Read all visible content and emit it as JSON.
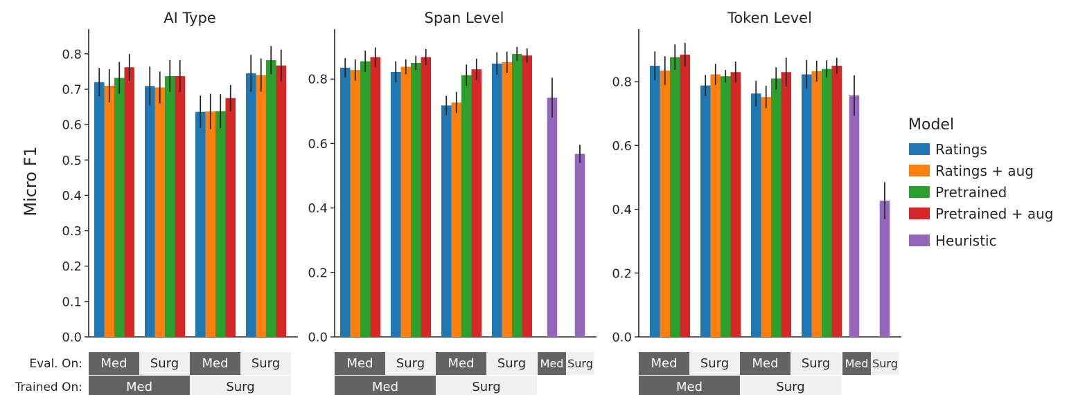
{
  "chart_data": {
    "type": "bar",
    "ylabel": "Micro F1",
    "legend": {
      "title": "Model",
      "placement": "right",
      "entries": [
        {
          "name": "Ratings",
          "color": "#1f77b4"
        },
        {
          "name": "Ratings + aug",
          "color": "#ff7f0e"
        },
        {
          "name": "Pretrained",
          "color": "#2ca02c"
        },
        {
          "name": "Pretrained + aug",
          "color": "#d62728"
        },
        {
          "name": "Heuristic",
          "color": "#9467bd"
        }
      ]
    },
    "row_labels": {
      "eval": "Eval. On:",
      "trained": "Trained On:"
    },
    "panels": [
      {
        "title": "AI Type",
        "ylim": [
          0,
          0.87
        ],
        "yticks": [
          0.0,
          0.1,
          0.2,
          0.3,
          0.4,
          0.5,
          0.6,
          0.7,
          0.8
        ],
        "tick_labels": [
          "0.0",
          "0.1",
          "0.2",
          "0.3",
          "0.4",
          "0.5",
          "0.6",
          "0.7",
          "0.8"
        ],
        "groups": [
          {
            "eval": "Med",
            "trained": "Med",
            "values": [
              0.72,
              0.71,
              0.732,
              0.762
            ],
            "err": [
              0.04,
              0.047,
              0.045,
              0.038
            ]
          },
          {
            "eval": "Surg",
            "trained": "Med",
            "values": [
              0.709,
              0.705,
              0.737,
              0.737
            ],
            "err": [
              0.055,
              0.045,
              0.045,
              0.045
            ]
          },
          {
            "eval": "Med",
            "trained": "Surg",
            "values": [
              0.636,
              0.637,
              0.638,
              0.675
            ],
            "err": [
              0.046,
              0.05,
              0.048,
              0.037
            ]
          },
          {
            "eval": "Surg",
            "trained": "Surg",
            "values": [
              0.745,
              0.74,
              0.782,
              0.767
            ],
            "err": [
              0.052,
              0.047,
              0.04,
              0.045
            ]
          }
        ],
        "trained_spans": [
          {
            "label": "Med",
            "groups": 2
          },
          {
            "label": "Surg",
            "groups": 2
          }
        ]
      },
      {
        "title": "Span Level",
        "ylim": [
          0,
          0.955
        ],
        "yticks": [
          0.0,
          0.2,
          0.4,
          0.6,
          0.8
        ],
        "tick_labels": [
          "0.0",
          "0.2",
          "0.4",
          "0.6",
          "0.8"
        ],
        "groups": [
          {
            "eval": "Med",
            "trained": "Med",
            "values": [
              0.835,
              0.828,
              0.855,
              0.868
            ],
            "err": [
              0.03,
              0.033,
              0.033,
              0.03
            ]
          },
          {
            "eval": "Surg",
            "trained": "Med",
            "values": [
              0.822,
              0.838,
              0.85,
              0.868
            ],
            "err": [
              0.033,
              0.023,
              0.022,
              0.025
            ]
          },
          {
            "eval": "Med",
            "trained": "Surg",
            "values": [
              0.718,
              0.727,
              0.812,
              0.83
            ],
            "err": [
              0.03,
              0.033,
              0.033,
              0.033
            ]
          },
          {
            "eval": "Surg",
            "trained": "Surg",
            "values": [
              0.848,
              0.852,
              0.878,
              0.873
            ],
            "err": [
              0.035,
              0.033,
              0.022,
              0.022
            ]
          }
        ],
        "heuristic": [
          {
            "eval": "Med",
            "value": 0.742,
            "err": 0.062
          },
          {
            "eval": "Surg",
            "value": 0.568,
            "err": 0.028
          }
        ],
        "trained_spans": [
          {
            "label": "Med",
            "groups": 2
          },
          {
            "label": "Surg",
            "groups": 2
          }
        ]
      },
      {
        "title": "Token Level",
        "ylim": [
          0,
          0.965
        ],
        "yticks": [
          0.0,
          0.2,
          0.4,
          0.6,
          0.8
        ],
        "tick_labels": [
          "0.0",
          "0.2",
          "0.4",
          "0.6",
          "0.8"
        ],
        "groups": [
          {
            "eval": "Med",
            "trained": "Med",
            "values": [
              0.85,
              0.835,
              0.877,
              0.885
            ],
            "err": [
              0.045,
              0.045,
              0.04,
              0.037
            ]
          },
          {
            "eval": "Surg",
            "trained": "Med",
            "values": [
              0.788,
              0.823,
              0.817,
              0.83
            ],
            "err": [
              0.033,
              0.033,
              0.02,
              0.033
            ]
          },
          {
            "eval": "Med",
            "trained": "Surg",
            "values": [
              0.763,
              0.752,
              0.81,
              0.83
            ],
            "err": [
              0.04,
              0.035,
              0.035,
              0.045
            ]
          },
          {
            "eval": "Surg",
            "trained": "Surg",
            "values": [
              0.823,
              0.833,
              0.84,
              0.85
            ],
            "err": [
              0.045,
              0.033,
              0.027,
              0.025
            ]
          }
        ],
        "heuristic": [
          {
            "eval": "Med",
            "value": 0.757,
            "err": 0.063
          },
          {
            "eval": "Surg",
            "value": 0.427,
            "err": 0.058
          }
        ],
        "trained_spans": [
          {
            "label": "Med",
            "groups": 2
          },
          {
            "label": "Surg",
            "groups": 2
          }
        ]
      }
    ]
  }
}
